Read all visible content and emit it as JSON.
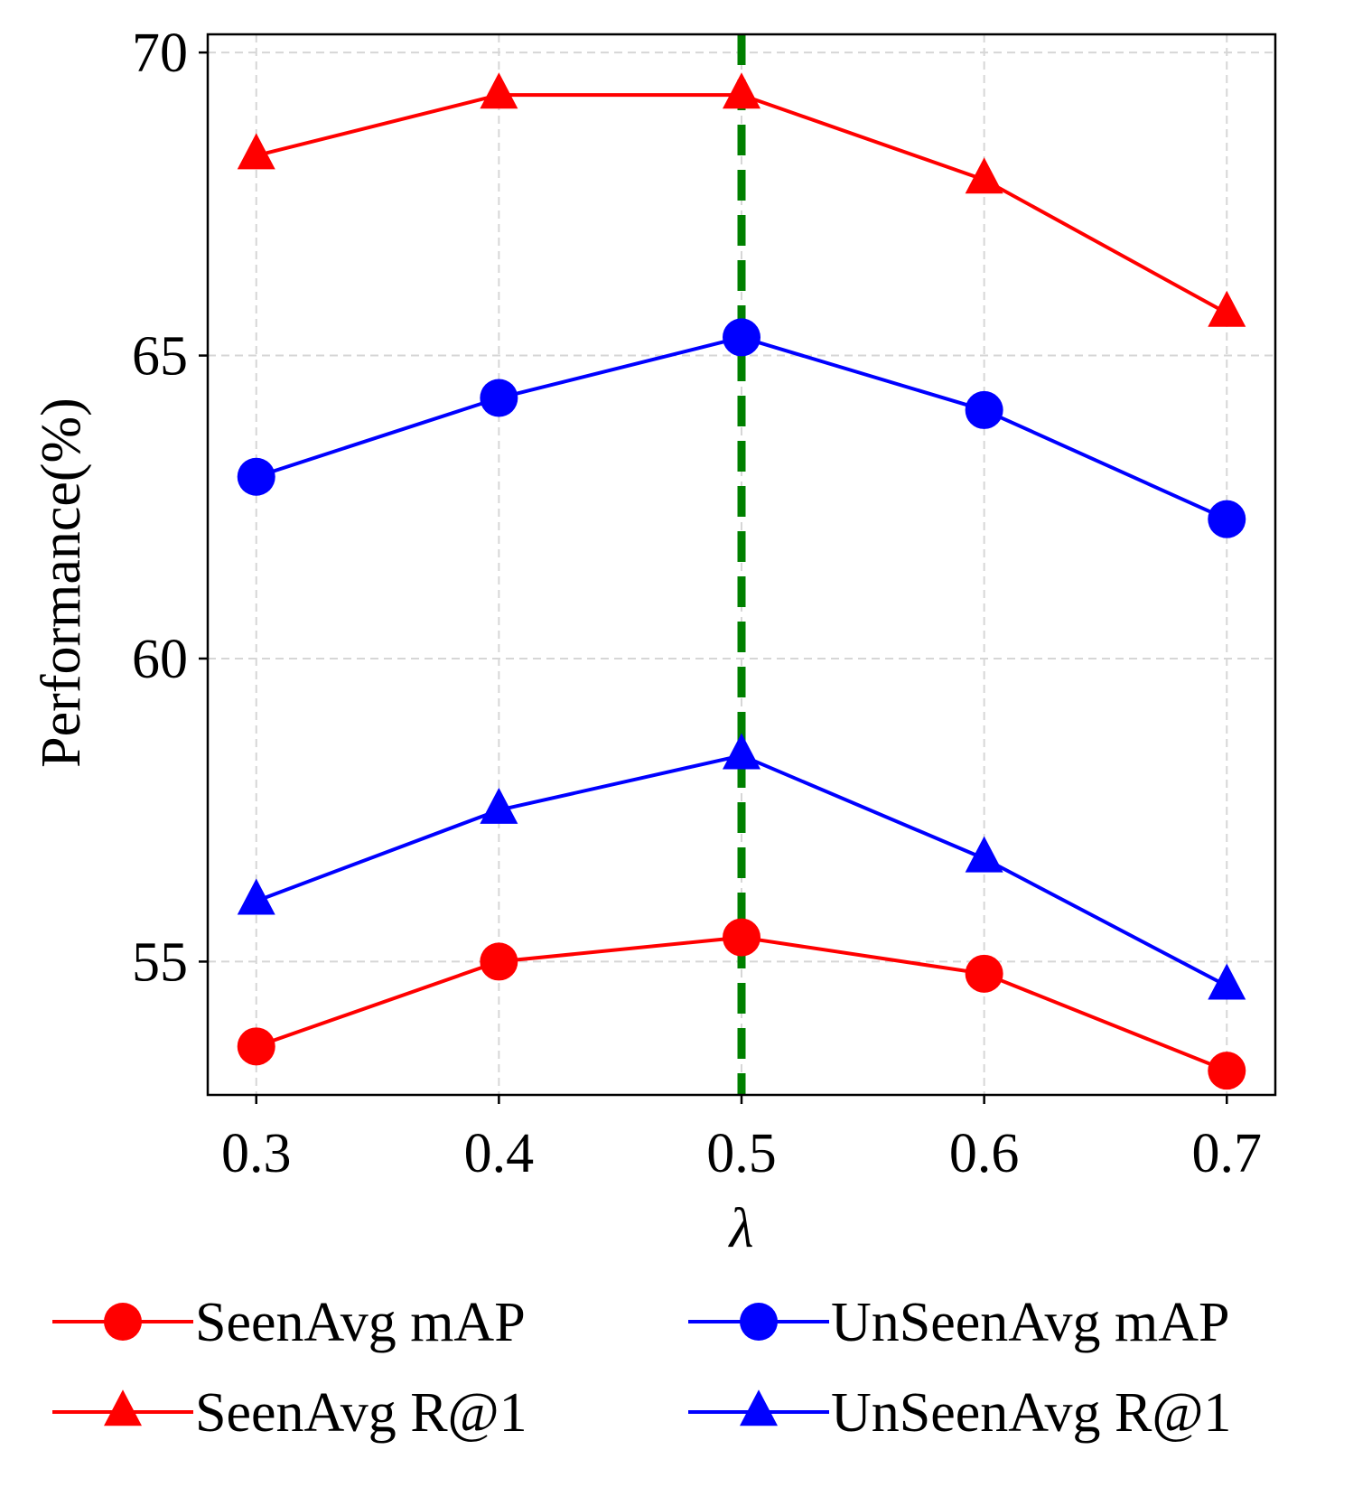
{
  "chart_data": {
    "type": "line",
    "title": "",
    "xlabel": "λ",
    "ylabel": "Performance(%)",
    "x": [
      0.3,
      0.4,
      0.5,
      0.6,
      0.7
    ],
    "x_tick_labels": [
      "0.3",
      "0.4",
      "0.5",
      "0.6",
      "0.7"
    ],
    "xlim": [
      0.28,
      0.72
    ],
    "ylim": [
      52.8,
      70.3
    ],
    "y_ticks": [
      55,
      60,
      65,
      70
    ],
    "y_tick_labels": [
      "55",
      "60",
      "65",
      "70"
    ],
    "grid": true,
    "vline": {
      "x": 0.5,
      "color": "#008000",
      "style": "dashed"
    },
    "legend_position": "bottom",
    "series": [
      {
        "name": "SeenAvg mAP",
        "color": "#ff0000",
        "marker": "circle",
        "values": [
          53.6,
          55.0,
          55.4,
          54.8,
          53.2
        ]
      },
      {
        "name": "UnSeenAvg mAP",
        "color": "#0000ff",
        "marker": "circle",
        "values": [
          63.0,
          64.3,
          65.3,
          64.1,
          62.3
        ]
      },
      {
        "name": "SeenAvg R@1",
        "color": "#ff0000",
        "marker": "triangle",
        "values": [
          68.3,
          69.3,
          69.3,
          67.9,
          65.7
        ]
      },
      {
        "name": "UnSeenAvg R@1",
        "color": "#0000ff",
        "marker": "triangle",
        "values": [
          56.0,
          57.5,
          58.4,
          56.7,
          54.6
        ]
      }
    ]
  }
}
